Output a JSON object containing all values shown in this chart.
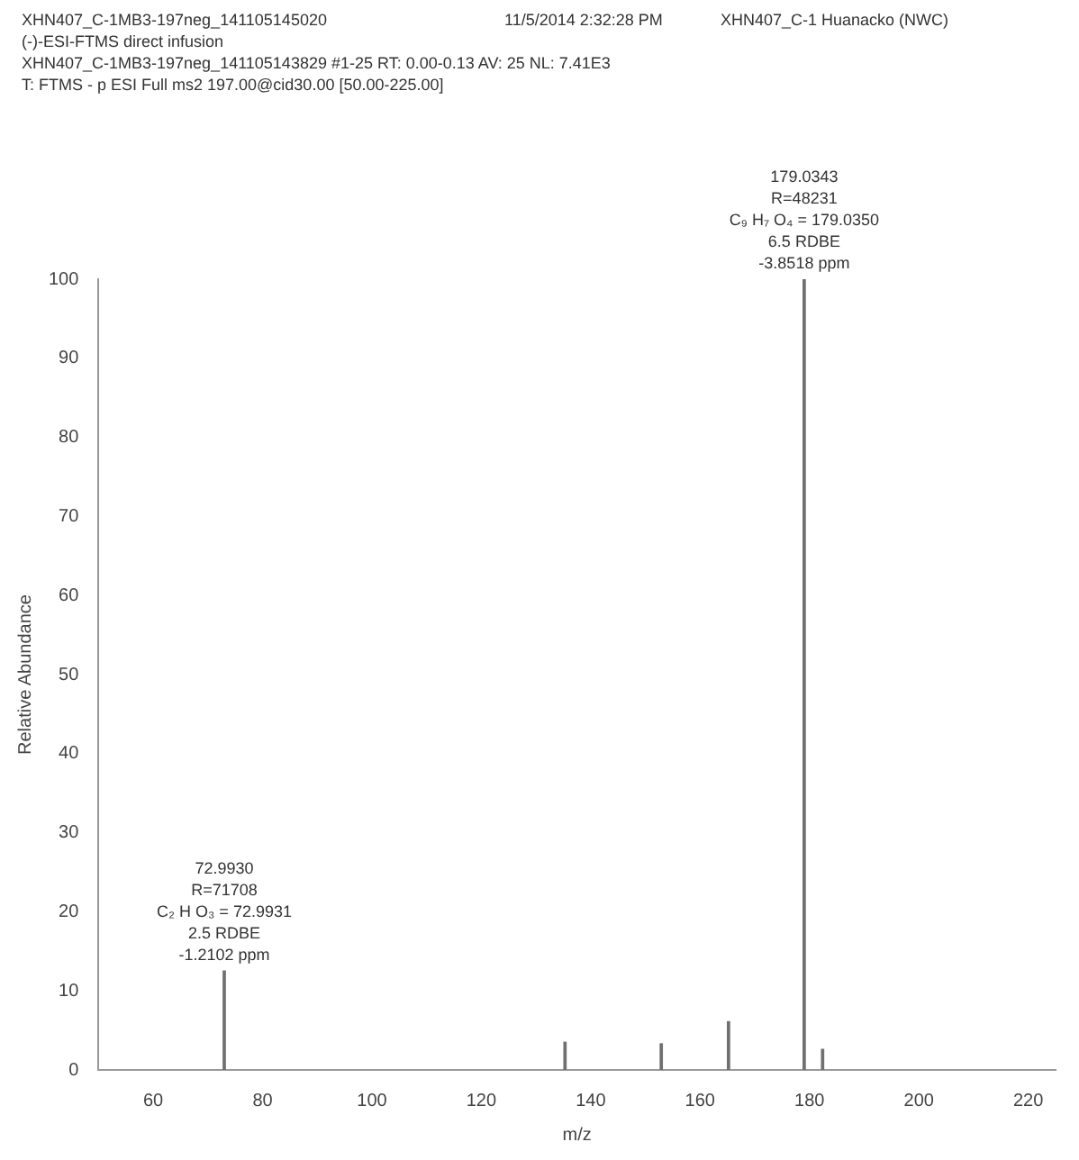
{
  "chart_data": {
    "type": "bar",
    "xlabel": "m/z",
    "ylabel": "Relative Abundance",
    "x": [
      72.993,
      135.3,
      152.9,
      165.2,
      179.0343,
      182.4
    ],
    "values": [
      12.5,
      3.5,
      3.3,
      6.1,
      100,
      2.6
    ],
    "color": "#707070",
    "xlim": [
      50,
      225
    ],
    "xticks": [
      60,
      80,
      100,
      120,
      140,
      160,
      180,
      200,
      220
    ],
    "ylim": [
      0,
      100
    ],
    "yticks": [
      0,
      10,
      20,
      30,
      40,
      50,
      60,
      70,
      80,
      90,
      100
    ],
    "grid": false,
    "legend": false,
    "annotations": [
      "XHN407_C-1MB3-197neg_141105145020",
      "11/5/2014 2:32:28 PM",
      "XHN407_C-1 Huanacko (NWC)",
      "(-)-ESI-FTMS direct infusion",
      "XHN407_C-1MB3-197neg_141105143829 #1-25  RT: 0.00-0.13  AV: 25  NL: 7.41E3",
      "T: FTMS - p ESI Full ms2 197.00@cid30.00 [50.00-225.00]",
      {
        "text": "72.9930\nR=71708\nC₂ H O₃ = 72.9931\n2.5 RDBE\n-1.2102 ppm",
        "x": 72.993,
        "y": 12.5
      },
      {
        "text": "179.0343\nR=48231\nC₉ H₇ O₄ = 179.0350\n6.5 RDBE\n-3.8518 ppm",
        "x": 179.0343,
        "y": 100
      }
    ]
  }
}
